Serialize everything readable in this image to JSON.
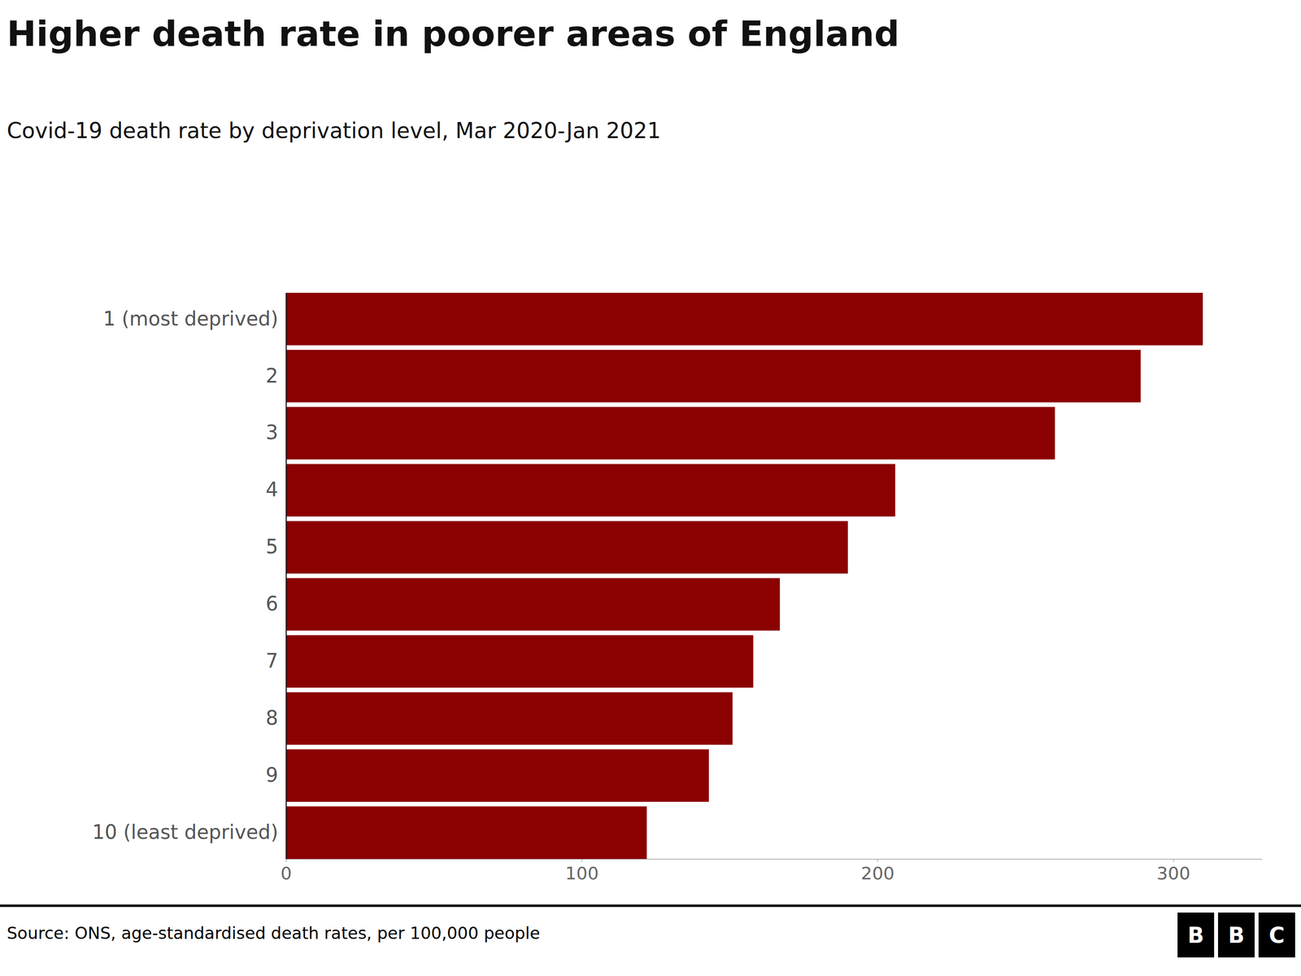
{
  "chart_data": {
    "type": "bar",
    "orientation": "horizontal",
    "title": "Higher death rate in poorer areas of England",
    "subtitle": "Covid-19 death rate by deprivation level, Mar 2020-Jan 2021",
    "annotations": [
      "Source: ONS, age-standardised death rates, per 100,000 people",
      "B",
      "B",
      "C"
    ],
    "categories": [
      "1 (most deprived)",
      "2",
      "3",
      "4",
      "5",
      "6",
      "7",
      "8",
      "9",
      "10 (least deprived)"
    ],
    "values": [
      310,
      289,
      260,
      206,
      190,
      167,
      158,
      151,
      143,
      122
    ],
    "color": "#8B0000",
    "xlim": [
      0,
      330
    ],
    "xticks": [
      0,
      100,
      200,
      300
    ],
    "grid": false
  }
}
